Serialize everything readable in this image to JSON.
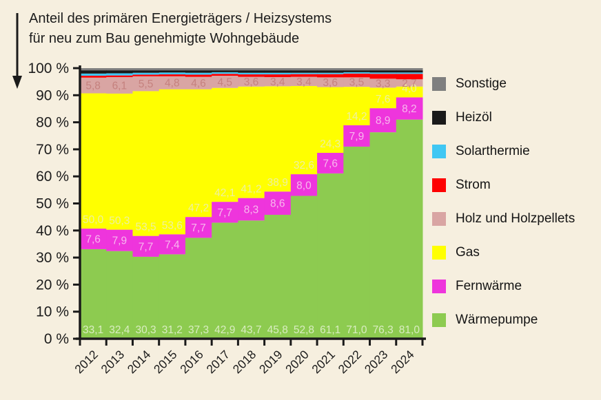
{
  "title": {
    "line1": "Anteil des primären Energieträgers / Heizsystems",
    "line2": "für neu zum Bau genehmigte Wohngebäude"
  },
  "colors": {
    "background": "#f6efdf",
    "axis": "#1a1a1a",
    "text": "#1c1c1c"
  },
  "chart_data": {
    "type": "area",
    "variant": "stacked-step-100pct",
    "unit": "%",
    "x": [
      2012,
      2013,
      2014,
      2015,
      2016,
      2017,
      2018,
      2019,
      2020,
      2021,
      2022,
      2023,
      2024
    ],
    "ylim": [
      0,
      100
    ],
    "ytick_values": [
      0,
      10,
      20,
      30,
      40,
      50,
      60,
      70,
      80,
      90,
      100
    ],
    "ytick_labels": [
      "0 %",
      "10 %",
      "20 %",
      "30 %",
      "40 %",
      "50 %",
      "60 %",
      "70 %",
      "80 %",
      "90 %",
      "100 %"
    ],
    "grid": false,
    "legend_position": "right",
    "legend_top_to_bottom": [
      "Sonstige",
      "Heizöl",
      "Solarthermie",
      "Strom",
      "Holz und Holzpellets",
      "Gas",
      "Fernwärme",
      "Wärmepumpe"
    ],
    "series_bottom_to_top": [
      {
        "id": "waermepumpe",
        "name": "Wärmepumpe",
        "color": "#8dcb50",
        "label_color": "#d9edc1",
        "label_pos": "base",
        "estimated": false,
        "values": [
          33.1,
          32.4,
          30.3,
          31.2,
          37.3,
          42.9,
          43.7,
          45.8,
          52.8,
          61.1,
          71.0,
          76.3,
          81.0
        ],
        "labels": [
          "33,1",
          "32,4",
          "30,3",
          "31,2",
          "37,3",
          "42,9",
          "43,7",
          "45,8",
          "52,8",
          "61,1",
          "71,0",
          "76,3",
          "81,0"
        ]
      },
      {
        "id": "fernwaerme",
        "name": "Fernwärme",
        "color": "#ee35dc",
        "label_color": "#f8b8ee",
        "label_pos": "center",
        "estimated": false,
        "values": [
          7.6,
          7.9,
          7.7,
          7.4,
          7.7,
          7.7,
          8.3,
          8.6,
          8.0,
          7.6,
          7.9,
          8.9,
          8.2
        ],
        "labels": [
          "7,6",
          "7,9",
          "7,7",
          "7,4",
          "7,7",
          "7,7",
          "8,3",
          "8,6",
          "8,0",
          "7,6",
          "7,9",
          "8,9",
          "8,2"
        ]
      },
      {
        "id": "gas",
        "name": "Gas",
        "color": "#ffff00",
        "label_color": "#eef0a0",
        "label_pos": "base",
        "estimated": false,
        "values": [
          50.0,
          50.3,
          53.5,
          53.6,
          47.2,
          42.1,
          41.2,
          38.9,
          32.6,
          24.3,
          14.2,
          7.6,
          4.0
        ],
        "labels": [
          "50,0",
          "50,3",
          "53,5",
          "53,6",
          "47,2",
          "42,1",
          "41,2",
          "38,9",
          "32,6",
          "24,3",
          "14,2",
          "7,6",
          "4,0"
        ]
      },
      {
        "id": "holz",
        "name": "Holz und Holzpellets",
        "color": "#d9a5a3",
        "label_color": "#c5817e",
        "label_pos": "center",
        "estimated": false,
        "values": [
          5.8,
          6.1,
          5.5,
          4.8,
          4.6,
          4.5,
          3.6,
          3.4,
          3.4,
          3.6,
          3.5,
          3.3,
          2.7
        ],
        "labels": [
          "5,8",
          "6,1",
          "5,5",
          "4,8",
          "4,6",
          "4,5",
          "3,6",
          "3,4",
          "3,4",
          "3,6",
          "3,5",
          "3,3",
          "2,7"
        ]
      },
      {
        "id": "strom",
        "name": "Strom",
        "color": "#fe0000",
        "label_color": null,
        "label_pos": null,
        "estimated": true,
        "values": [
          0.7,
          0.6,
          0.6,
          0.7,
          0.8,
          0.7,
          0.9,
          1.0,
          1.0,
          1.2,
          1.4,
          1.8,
          2.0
        ],
        "labels": null
      },
      {
        "id": "solarthermie",
        "name": "Solarthermie",
        "color": "#40c7f3",
        "label_color": null,
        "label_pos": null,
        "estimated": true,
        "values": [
          0.8,
          0.8,
          0.7,
          0.7,
          0.7,
          0.6,
          0.6,
          0.6,
          0.5,
          0.5,
          0.5,
          0.5,
          0.5
        ],
        "labels": null
      },
      {
        "id": "heizoel",
        "name": "Heizöl",
        "color": "#1a1a1a",
        "label_color": null,
        "label_pos": null,
        "estimated": true,
        "values": [
          1.2,
          1.1,
          0.9,
          0.8,
          0.9,
          0.7,
          0.9,
          0.9,
          0.9,
          0.9,
          0.7,
          0.8,
          0.8
        ],
        "labels": null
      },
      {
        "id": "sonstige",
        "name": "Sonstige",
        "color": "#7f7f7f",
        "label_color": null,
        "label_pos": null,
        "estimated": true,
        "values": [
          0.8,
          0.8,
          0.8,
          0.8,
          0.8,
          0.8,
          0.8,
          0.8,
          0.8,
          0.8,
          0.8,
          0.8,
          0.8
        ],
        "labels": null
      }
    ]
  }
}
